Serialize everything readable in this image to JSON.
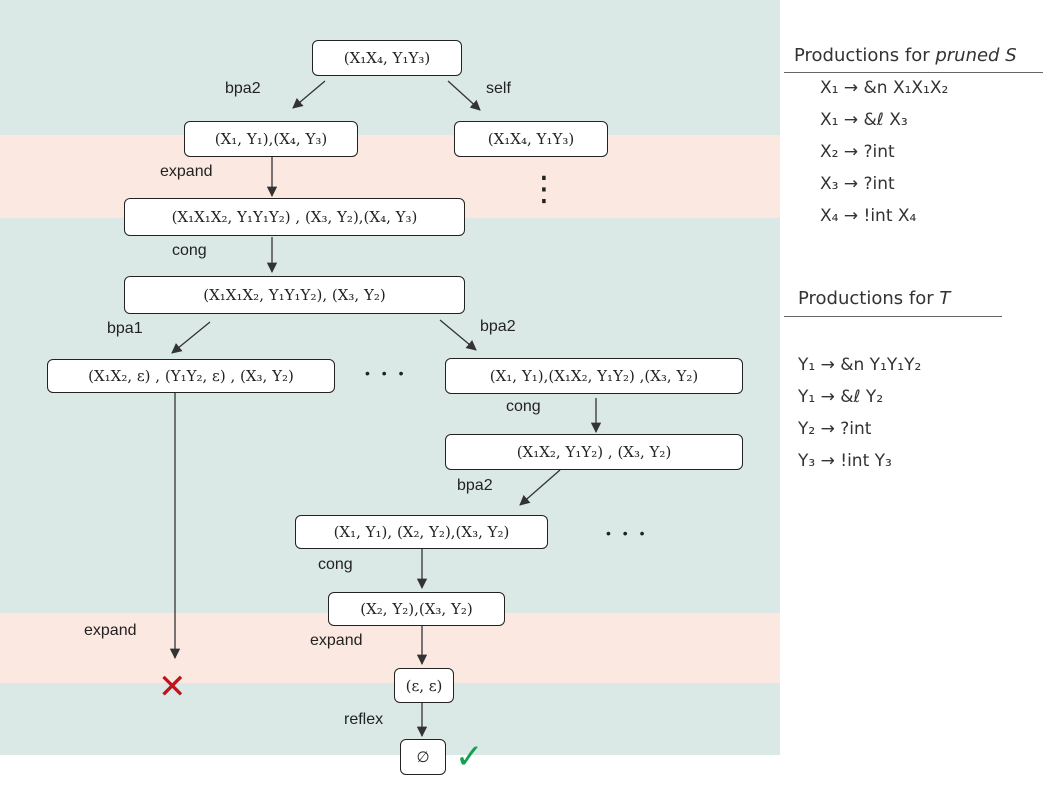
{
  "nodes": {
    "root": "(X₁X₄, Y₁Y₃)",
    "l1_left": "(X₁, Y₁),(X₄, Y₃)",
    "l1_right": "(X₁X₄, Y₁Y₃)",
    "l2": "(X₁X₁X₂, Y₁Y₁Y₂) , (X₃, Y₂),(X₄, Y₃)",
    "l3": "(X₁X₁X₂, Y₁Y₁Y₂),  (X₃, Y₂)",
    "l4_left": "(X₁X₂, ε) , (Y₁Y₂, ε) , (X₃, Y₂)",
    "l4_right": "(X₁, Y₁),(X₁X₂, Y₁Y₂) ,(X₃, Y₂)",
    "l5": "(X₁X₂, Y₁Y₂) ,  (X₃, Y₂)",
    "l6": "(X₁, Y₁), (X₂, Y₂),(X₃, Y₂)",
    "l7": "(X₂, Y₂),(X₃, Y₂)",
    "l8": "(ε, ε)",
    "l9": "∅"
  },
  "rules": {
    "bpa2_top": "bpa2",
    "self": "self",
    "expand_1": "expand",
    "cong_1": "cong",
    "bpa1": "bpa1",
    "bpa2_mid": "bpa2",
    "cong_2": "cong",
    "bpa2_low": "bpa2",
    "cong_3": "cong",
    "expand_left": "expand",
    "expand_2": "expand",
    "reflex": "reflex"
  },
  "dots": {
    "vertical": "⋮",
    "mid": "• • •",
    "low": "• • •"
  },
  "marks": {
    "fail": "✕",
    "success": "✓"
  },
  "side": {
    "s_title_prefix": "Productions for ",
    "s_title_name": "pruned S",
    "s_productions": [
      "X₁ → &n X₁X₁X₂",
      "X₁ → &ℓ X₃",
      "X₂ → ?int",
      "X₃ → ?int",
      "X₄ → !int X₄"
    ],
    "t_title_prefix": "Productions for ",
    "t_title_name": "T",
    "t_productions": [
      "Y₁ → &n Y₁Y₁Y₂",
      "Y₁ → &ℓ Y₂",
      "Y₂ → ?int",
      "Y₃ → !int Y₃"
    ]
  },
  "colors": {
    "band_green": "#dbe9e6",
    "band_peach": "#fbe9e1",
    "fail": "#c0141c",
    "success": "#13a052"
  }
}
